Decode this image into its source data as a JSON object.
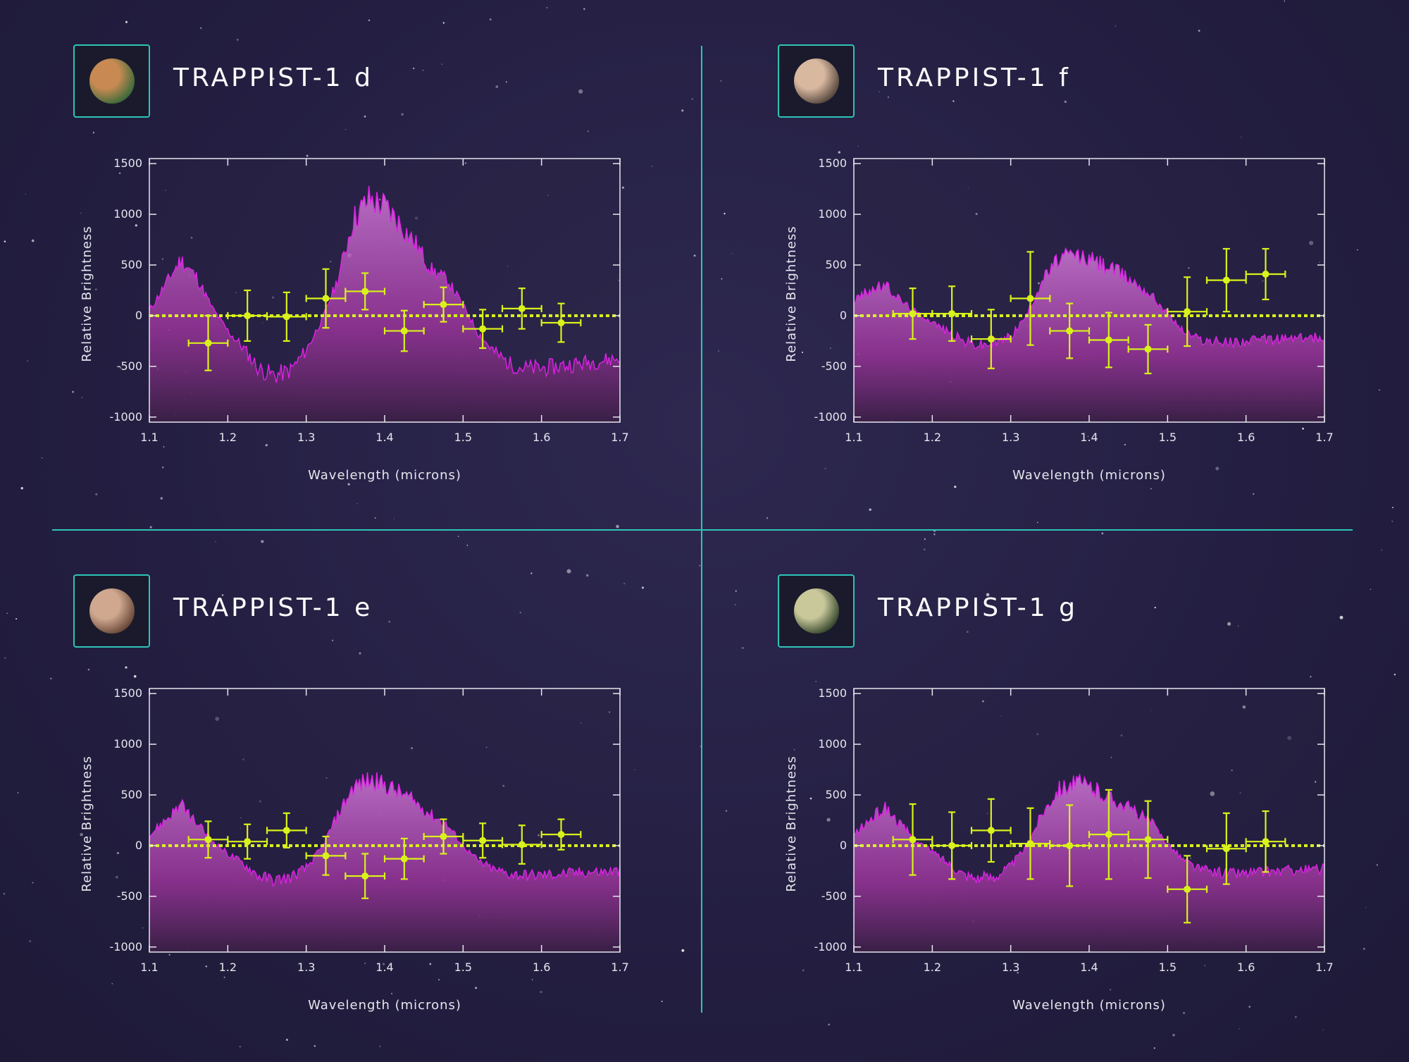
{
  "colors": {
    "background": "#241f42",
    "divider": "#2ec4b6",
    "spectrum_fill": "#b43ec0",
    "spectrum_line": "#e020e8",
    "data_points": "#d9f21a",
    "zero_line": "#d9f21a",
    "axis": "#e6e6ee"
  },
  "axis_text": {
    "xlabel": "Wavelength (microns)",
    "ylabel": "Relative Brightness"
  },
  "chart_data": [
    {
      "type": "scatter",
      "title": "TRAPPIST-1 d",
      "planet_icon": "planet-d-icon",
      "planet_colors": [
        "#c88a52",
        "#3d6b3a"
      ],
      "xlabel": "Wavelength (microns)",
      "ylabel": "Relative Brightness",
      "xlim": [
        1.1,
        1.7
      ],
      "ylim": [
        -1050,
        1550
      ],
      "xticks": [
        1.1,
        1.2,
        1.3,
        1.4,
        1.5,
        1.6,
        1.7
      ],
      "yticks": [
        1500,
        1000,
        500,
        0,
        -500,
        -1000
      ],
      "zero_line": 0,
      "spectrum_model": [
        [
          1.1,
          50
        ],
        [
          1.12,
          300
        ],
        [
          1.14,
          550
        ],
        [
          1.16,
          380
        ],
        [
          1.18,
          80
        ],
        [
          1.2,
          -150
        ],
        [
          1.22,
          -320
        ],
        [
          1.24,
          -530
        ],
        [
          1.26,
          -590
        ],
        [
          1.28,
          -540
        ],
        [
          1.3,
          -340
        ],
        [
          1.32,
          -40
        ],
        [
          1.34,
          350
        ],
        [
          1.36,
          950
        ],
        [
          1.38,
          1150
        ],
        [
          1.4,
          1080
        ],
        [
          1.42,
          900
        ],
        [
          1.44,
          700
        ],
        [
          1.46,
          450
        ],
        [
          1.48,
          350
        ],
        [
          1.5,
          100
        ],
        [
          1.52,
          -180
        ],
        [
          1.54,
          -360
        ],
        [
          1.56,
          -480
        ],
        [
          1.58,
          -520
        ],
        [
          1.6,
          -520
        ],
        [
          1.62,
          -500
        ],
        [
          1.64,
          -480
        ],
        [
          1.66,
          -460
        ],
        [
          1.68,
          -440
        ],
        [
          1.7,
          -420
        ]
      ],
      "points": [
        {
          "x": 1.175,
          "y": -270,
          "xerr": 0.025,
          "yerr": 270
        },
        {
          "x": 1.225,
          "y": 0,
          "xerr": 0.025,
          "yerr": 250
        },
        {
          "x": 1.275,
          "y": -10,
          "xerr": 0.025,
          "yerr": 240
        },
        {
          "x": 1.325,
          "y": 170,
          "xerr": 0.025,
          "yerr": 290
        },
        {
          "x": 1.375,
          "y": 240,
          "xerr": 0.025,
          "yerr": 180
        },
        {
          "x": 1.425,
          "y": -150,
          "xerr": 0.025,
          "yerr": 200
        },
        {
          "x": 1.475,
          "y": 110,
          "xerr": 0.025,
          "yerr": 170
        },
        {
          "x": 1.525,
          "y": -130,
          "xerr": 0.025,
          "yerr": 190
        },
        {
          "x": 1.575,
          "y": 70,
          "xerr": 0.025,
          "yerr": 200
        },
        {
          "x": 1.625,
          "y": -70,
          "xerr": 0.025,
          "yerr": 190
        }
      ]
    },
    {
      "type": "scatter",
      "title": "TRAPPIST-1 f",
      "planet_icon": "planet-f-icon",
      "planet_colors": [
        "#d9b8a0",
        "#5a4a40"
      ],
      "xlabel": "Wavelength (microns)",
      "ylabel": "Relative Brightness",
      "xlim": [
        1.1,
        1.7
      ],
      "ylim": [
        -1050,
        1550
      ],
      "xticks": [
        1.1,
        1.2,
        1.3,
        1.4,
        1.5,
        1.6,
        1.7
      ],
      "yticks": [
        1500,
        1000,
        500,
        0,
        -500,
        -1000
      ],
      "zero_line": 0,
      "spectrum_model": [
        [
          1.1,
          150
        ],
        [
          1.12,
          250
        ],
        [
          1.14,
          300
        ],
        [
          1.16,
          150
        ],
        [
          1.18,
          30
        ],
        [
          1.2,
          -60
        ],
        [
          1.22,
          -160
        ],
        [
          1.24,
          -250
        ],
        [
          1.26,
          -290
        ],
        [
          1.28,
          -270
        ],
        [
          1.3,
          -200
        ],
        [
          1.32,
          0
        ],
        [
          1.34,
          350
        ],
        [
          1.36,
          550
        ],
        [
          1.38,
          600
        ],
        [
          1.4,
          560
        ],
        [
          1.42,
          500
        ],
        [
          1.44,
          420
        ],
        [
          1.46,
          320
        ],
        [
          1.48,
          200
        ],
        [
          1.5,
          20
        ],
        [
          1.52,
          -150
        ],
        [
          1.54,
          -230
        ],
        [
          1.56,
          -260
        ],
        [
          1.58,
          -260
        ],
        [
          1.6,
          -250
        ],
        [
          1.62,
          -240
        ],
        [
          1.64,
          -230
        ],
        [
          1.66,
          -220
        ],
        [
          1.68,
          -220
        ],
        [
          1.7,
          -210
        ]
      ],
      "points": [
        {
          "x": 1.175,
          "y": 20,
          "xerr": 0.025,
          "yerr": 250
        },
        {
          "x": 1.225,
          "y": 20,
          "xerr": 0.025,
          "yerr": 270
        },
        {
          "x": 1.275,
          "y": -230,
          "xerr": 0.025,
          "yerr": 290
        },
        {
          "x": 1.325,
          "y": 170,
          "xerr": 0.025,
          "yerr": 460
        },
        {
          "x": 1.375,
          "y": -150,
          "xerr": 0.025,
          "yerr": 270
        },
        {
          "x": 1.425,
          "y": -240,
          "xerr": 0.025,
          "yerr": 270
        },
        {
          "x": 1.475,
          "y": -330,
          "xerr": 0.025,
          "yerr": 240
        },
        {
          "x": 1.525,
          "y": 40,
          "xerr": 0.025,
          "yerr": 340
        },
        {
          "x": 1.575,
          "y": 350,
          "xerr": 0.025,
          "yerr": 310
        },
        {
          "x": 1.625,
          "y": 410,
          "xerr": 0.025,
          "yerr": 250
        }
      ]
    },
    {
      "type": "scatter",
      "title": "TRAPPIST-1 e",
      "planet_icon": "planet-e-icon",
      "planet_colors": [
        "#d0a890",
        "#6b4a3a"
      ],
      "xlabel": "Wavelength (microns)",
      "ylabel": "Relative Brightness",
      "xlim": [
        1.1,
        1.7
      ],
      "ylim": [
        -1050,
        1550
      ],
      "xticks": [
        1.1,
        1.2,
        1.3,
        1.4,
        1.5,
        1.6,
        1.7
      ],
      "yticks": [
        1500,
        1000,
        500,
        0,
        -500,
        -1000
      ],
      "zero_line": 0,
      "spectrum_model": [
        [
          1.1,
          100
        ],
        [
          1.12,
          250
        ],
        [
          1.14,
          400
        ],
        [
          1.16,
          220
        ],
        [
          1.18,
          50
        ],
        [
          1.2,
          -80
        ],
        [
          1.22,
          -180
        ],
        [
          1.24,
          -300
        ],
        [
          1.26,
          -340
        ],
        [
          1.28,
          -310
        ],
        [
          1.3,
          -220
        ],
        [
          1.32,
          -20
        ],
        [
          1.34,
          300
        ],
        [
          1.36,
          580
        ],
        [
          1.38,
          650
        ],
        [
          1.4,
          600
        ],
        [
          1.42,
          520
        ],
        [
          1.44,
          420
        ],
        [
          1.46,
          300
        ],
        [
          1.48,
          200
        ],
        [
          1.5,
          0
        ],
        [
          1.52,
          -160
        ],
        [
          1.54,
          -240
        ],
        [
          1.56,
          -280
        ],
        [
          1.58,
          -290
        ],
        [
          1.6,
          -290
        ],
        [
          1.62,
          -280
        ],
        [
          1.64,
          -270
        ],
        [
          1.66,
          -260
        ],
        [
          1.68,
          -260
        ],
        [
          1.7,
          -250
        ]
      ],
      "points": [
        {
          "x": 1.175,
          "y": 60,
          "xerr": 0.025,
          "yerr": 180
        },
        {
          "x": 1.225,
          "y": 40,
          "xerr": 0.025,
          "yerr": 170
        },
        {
          "x": 1.275,
          "y": 150,
          "xerr": 0.025,
          "yerr": 170
        },
        {
          "x": 1.325,
          "y": -100,
          "xerr": 0.025,
          "yerr": 190
        },
        {
          "x": 1.375,
          "y": -300,
          "xerr": 0.025,
          "yerr": 220
        },
        {
          "x": 1.425,
          "y": -130,
          "xerr": 0.025,
          "yerr": 200
        },
        {
          "x": 1.475,
          "y": 90,
          "xerr": 0.025,
          "yerr": 170
        },
        {
          "x": 1.525,
          "y": 50,
          "xerr": 0.025,
          "yerr": 170
        },
        {
          "x": 1.575,
          "y": 10,
          "xerr": 0.025,
          "yerr": 190
        },
        {
          "x": 1.625,
          "y": 110,
          "xerr": 0.025,
          "yerr": 150
        }
      ]
    },
    {
      "type": "scatter",
      "title": "TRAPPIST-1 g",
      "planet_icon": "planet-g-icon",
      "planet_colors": [
        "#c8c89a",
        "#3a4a30"
      ],
      "xlabel": "Wavelength (microns)",
      "ylabel": "Relative Brightness",
      "xlim": [
        1.1,
        1.7
      ],
      "ylim": [
        -1050,
        1550
      ],
      "xticks": [
        1.1,
        1.2,
        1.3,
        1.4,
        1.5,
        1.6,
        1.7
      ],
      "yticks": [
        1500,
        1000,
        500,
        0,
        -500,
        -1000
      ],
      "zero_line": 0,
      "spectrum_model": [
        [
          1.1,
          100
        ],
        [
          1.12,
          250
        ],
        [
          1.14,
          380
        ],
        [
          1.16,
          200
        ],
        [
          1.18,
          50
        ],
        [
          1.2,
          -60
        ],
        [
          1.22,
          -170
        ],
        [
          1.24,
          -280
        ],
        [
          1.26,
          -320
        ],
        [
          1.28,
          -300
        ],
        [
          1.3,
          -200
        ],
        [
          1.32,
          -10
        ],
        [
          1.34,
          320
        ],
        [
          1.36,
          560
        ],
        [
          1.38,
          620
        ],
        [
          1.4,
          580
        ],
        [
          1.42,
          500
        ],
        [
          1.44,
          420
        ],
        [
          1.46,
          330
        ],
        [
          1.48,
          220
        ],
        [
          1.5,
          20
        ],
        [
          1.52,
          -140
        ],
        [
          1.54,
          -230
        ],
        [
          1.56,
          -260
        ],
        [
          1.58,
          -270
        ],
        [
          1.6,
          -270
        ],
        [
          1.62,
          -260
        ],
        [
          1.64,
          -250
        ],
        [
          1.66,
          -240
        ],
        [
          1.68,
          -240
        ],
        [
          1.7,
          -230
        ]
      ],
      "points": [
        {
          "x": 1.175,
          "y": 60,
          "xerr": 0.025,
          "yerr": 350
        },
        {
          "x": 1.225,
          "y": 0,
          "xerr": 0.025,
          "yerr": 330
        },
        {
          "x": 1.275,
          "y": 150,
          "xerr": 0.025,
          "yerr": 310
        },
        {
          "x": 1.325,
          "y": 20,
          "xerr": 0.025,
          "yerr": 350
        },
        {
          "x": 1.375,
          "y": 0,
          "xerr": 0.025,
          "yerr": 400
        },
        {
          "x": 1.425,
          "y": 110,
          "xerr": 0.025,
          "yerr": 440
        },
        {
          "x": 1.475,
          "y": 60,
          "xerr": 0.025,
          "yerr": 380
        },
        {
          "x": 1.525,
          "y": -430,
          "xerr": 0.025,
          "yerr": 330
        },
        {
          "x": 1.575,
          "y": -30,
          "xerr": 0.025,
          "yerr": 350
        },
        {
          "x": 1.625,
          "y": 40,
          "xerr": 0.025,
          "yerr": 300
        }
      ]
    }
  ]
}
